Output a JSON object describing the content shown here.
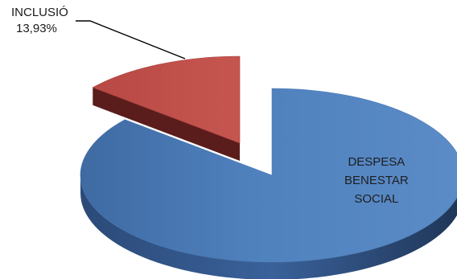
{
  "chart_data": {
    "type": "pie",
    "style": "3d-exploded",
    "legend": "none",
    "slices": [
      {
        "label_lines": [
          "DESPESA",
          "BENESTAR",
          "SOCIAL"
        ],
        "value_label": "",
        "percent": 86.07,
        "color": "#4f81bd",
        "exploded": false
      },
      {
        "label_lines": [
          "INCLUSIÓ"
        ],
        "value_label": "13,93%",
        "percent": 13.93,
        "color": "#c0504d",
        "exploded": true
      }
    ]
  }
}
